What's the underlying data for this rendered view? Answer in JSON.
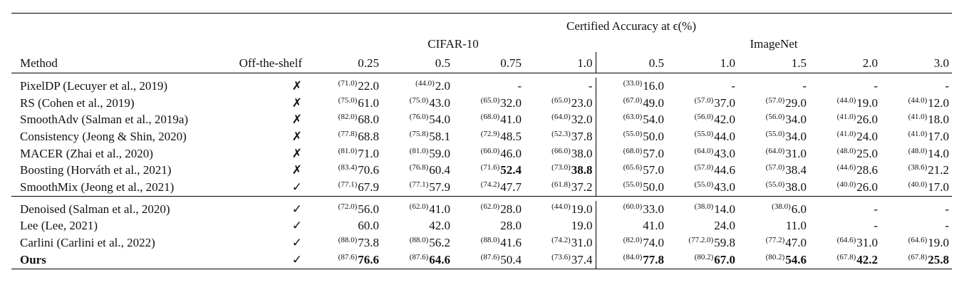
{
  "header": {
    "super": "Certified Accuracy at ϵ(%)",
    "datasets": [
      "CIFAR-10",
      "ImageNet"
    ],
    "method_label": "Method",
    "shelf_label": "Off-the-shelf",
    "eps": [
      "0.25",
      "0.5",
      "0.75",
      "1.0",
      "0.5",
      "1.0",
      "1.5",
      "2.0",
      "3.0"
    ]
  },
  "marks": {
    "no": "✗",
    "yes": "✓"
  },
  "groups": [
    {
      "rows": [
        {
          "method": "PixelDP (Lecuyer et al., 2019)",
          "shelf": "no",
          "cells": [
            {
              "c": "71.0",
              "v": "22.0"
            },
            {
              "c": "44.0",
              "v": "2.0"
            },
            {
              "v": "-"
            },
            {
              "v": "-"
            },
            {
              "c": "33.0",
              "v": "16.0"
            },
            {
              "v": "-"
            },
            {
              "v": "-"
            },
            {
              "v": "-"
            },
            {
              "v": "-"
            }
          ]
        },
        {
          "method": "RS (Cohen et al., 2019)",
          "shelf": "no",
          "cells": [
            {
              "c": "75.0",
              "v": "61.0"
            },
            {
              "c": "75.0",
              "v": "43.0"
            },
            {
              "c": "65.0",
              "v": "32.0"
            },
            {
              "c": "65.0",
              "v": "23.0"
            },
            {
              "c": "67.0",
              "v": "49.0"
            },
            {
              "c": "57.0",
              "v": "37.0"
            },
            {
              "c": "57.0",
              "v": "29.0"
            },
            {
              "c": "44.0",
              "v": "19.0"
            },
            {
              "c": "44.0",
              "v": "12.0"
            }
          ]
        },
        {
          "method": "SmoothAdv  (Salman et al., 2019a)",
          "shelf": "no",
          "cells": [
            {
              "c": "82.0",
              "v": "68.0"
            },
            {
              "c": "76.0",
              "v": "54.0"
            },
            {
              "c": "68.0",
              "v": "41.0"
            },
            {
              "c": "64.0",
              "v": "32.0"
            },
            {
              "c": "63.0",
              "v": "54.0"
            },
            {
              "c": "56.0",
              "v": "42.0"
            },
            {
              "c": "56.0",
              "v": "34.0"
            },
            {
              "c": "41.0",
              "v": "26.0"
            },
            {
              "c": "41.0",
              "v": "18.0"
            }
          ]
        },
        {
          "method": "Consistency  (Jeong & Shin, 2020)",
          "shelf": "no",
          "cells": [
            {
              "c": "77.8",
              "v": "68.8"
            },
            {
              "c": "75.8",
              "v": "58.1"
            },
            {
              "c": "72.9",
              "v": "48.5"
            },
            {
              "c": "52.3",
              "v": "37.8"
            },
            {
              "c": "55.0",
              "v": "50.0"
            },
            {
              "c": "55.0",
              "v": "44.0"
            },
            {
              "c": "55.0",
              "v": "34.0"
            },
            {
              "c": "41.0",
              "v": "24.0"
            },
            {
              "c": "41.0",
              "v": "17.0"
            }
          ]
        },
        {
          "method": "MACER  (Zhai et al., 2020)",
          "shelf": "no",
          "cells": [
            {
              "c": "81.0",
              "v": "71.0"
            },
            {
              "c": "81.0",
              "v": "59.0"
            },
            {
              "c": "66.0",
              "v": "46.0"
            },
            {
              "c": "66.0",
              "v": "38.0"
            },
            {
              "c": "68.0",
              "v": "57.0"
            },
            {
              "c": "64.0",
              "v": "43.0"
            },
            {
              "c": "64.0",
              "v": "31.0"
            },
            {
              "c": "48.0",
              "v": "25.0"
            },
            {
              "c": "48.0",
              "v": "14.0"
            }
          ]
        },
        {
          "method": "Boosting  (Horváth et al., 2021)",
          "shelf": "no",
          "cells": [
            {
              "c": "83.4",
              "v": "70.6"
            },
            {
              "c": "76.8",
              "v": "60.4"
            },
            {
              "c": "71.6",
              "v": "52.4",
              "b": true
            },
            {
              "c": "73.0",
              "v": "38.8",
              "b": true
            },
            {
              "c": "65.6",
              "v": "57.0"
            },
            {
              "c": "57.0",
              "v": "44.6"
            },
            {
              "c": "57.0",
              "v": "38.4"
            },
            {
              "c": "44.6",
              "v": "28.6"
            },
            {
              "c": "38.6",
              "v": "21.2"
            }
          ]
        },
        {
          "method": "SmoothMix  (Jeong et al., 2021)",
          "shelf": "yes",
          "cells": [
            {
              "c": "77.1",
              "v": "67.9"
            },
            {
              "c": "77.1",
              "v": "57.9"
            },
            {
              "c": "74.2",
              "v": "47.7"
            },
            {
              "c": "61.8",
              "v": "37.2"
            },
            {
              "c": "55.0",
              "v": "50.0"
            },
            {
              "c": "55.0",
              "v": "43.0"
            },
            {
              "c": "55.0",
              "v": "38.0"
            },
            {
              "c": "40.0",
              "v": "26.0"
            },
            {
              "c": "40.0",
              "v": "17.0"
            }
          ]
        }
      ]
    },
    {
      "rows": [
        {
          "method": "Denoised  (Salman et al., 2020)",
          "shelf": "yes",
          "cells": [
            {
              "c": "72.0",
              "v": "56.0"
            },
            {
              "c": "62.0",
              "v": "41.0"
            },
            {
              "c": "62.0",
              "v": "28.0"
            },
            {
              "c": "44.0",
              "v": "19.0"
            },
            {
              "c": "60.0",
              "v": "33.0"
            },
            {
              "c": "38.0",
              "v": "14.0"
            },
            {
              "c": "38.0",
              "v": "6.0"
            },
            {
              "v": "-"
            },
            {
              "v": "-"
            }
          ]
        },
        {
          "method": "Lee  (Lee, 2021)",
          "shelf": "yes",
          "cells": [
            {
              "v": "60.0"
            },
            {
              "v": "42.0"
            },
            {
              "v": "28.0"
            },
            {
              "v": "19.0"
            },
            {
              "v": "41.0"
            },
            {
              "v": "24.0"
            },
            {
              "v": "11.0"
            },
            {
              "v": "-"
            },
            {
              "v": "-"
            }
          ]
        },
        {
          "method": "Carlini (Carlini et al., 2022)",
          "shelf": "yes",
          "cells": [
            {
              "c": "88.0",
              "v": "73.8"
            },
            {
              "c": "88.0",
              "v": "56.2"
            },
            {
              "c": "88.0",
              "v": "41.6"
            },
            {
              "c": "74.2",
              "v": "31.0"
            },
            {
              "c": "82.0",
              "v": "74.0"
            },
            {
              "c": "77.2.0",
              "v": "59.8"
            },
            {
              "c": "77.2",
              "v": "47.0"
            },
            {
              "c": "64.6",
              "v": "31.0"
            },
            {
              "c": "64.6",
              "v": "19.0"
            }
          ]
        },
        {
          "method": "Ours",
          "method_bold": true,
          "shelf": "yes",
          "cells": [
            {
              "c": "87.6",
              "v": "76.6",
              "b": true
            },
            {
              "c": "87.6",
              "v": "64.6",
              "b": true
            },
            {
              "c": "87.6",
              "v": "50.4"
            },
            {
              "c": "73.6",
              "v": "37.4"
            },
            {
              "c": "84.0",
              "v": "77.8",
              "b": true
            },
            {
              "c": "80.2",
              "v": "67.0",
              "b": true
            },
            {
              "c": "80.2",
              "v": "54.6",
              "b": true
            },
            {
              "c": "67.8",
              "v": "42.2",
              "b": true
            },
            {
              "c": "67.8",
              "v": "25.8",
              "b": true
            }
          ]
        }
      ]
    }
  ]
}
